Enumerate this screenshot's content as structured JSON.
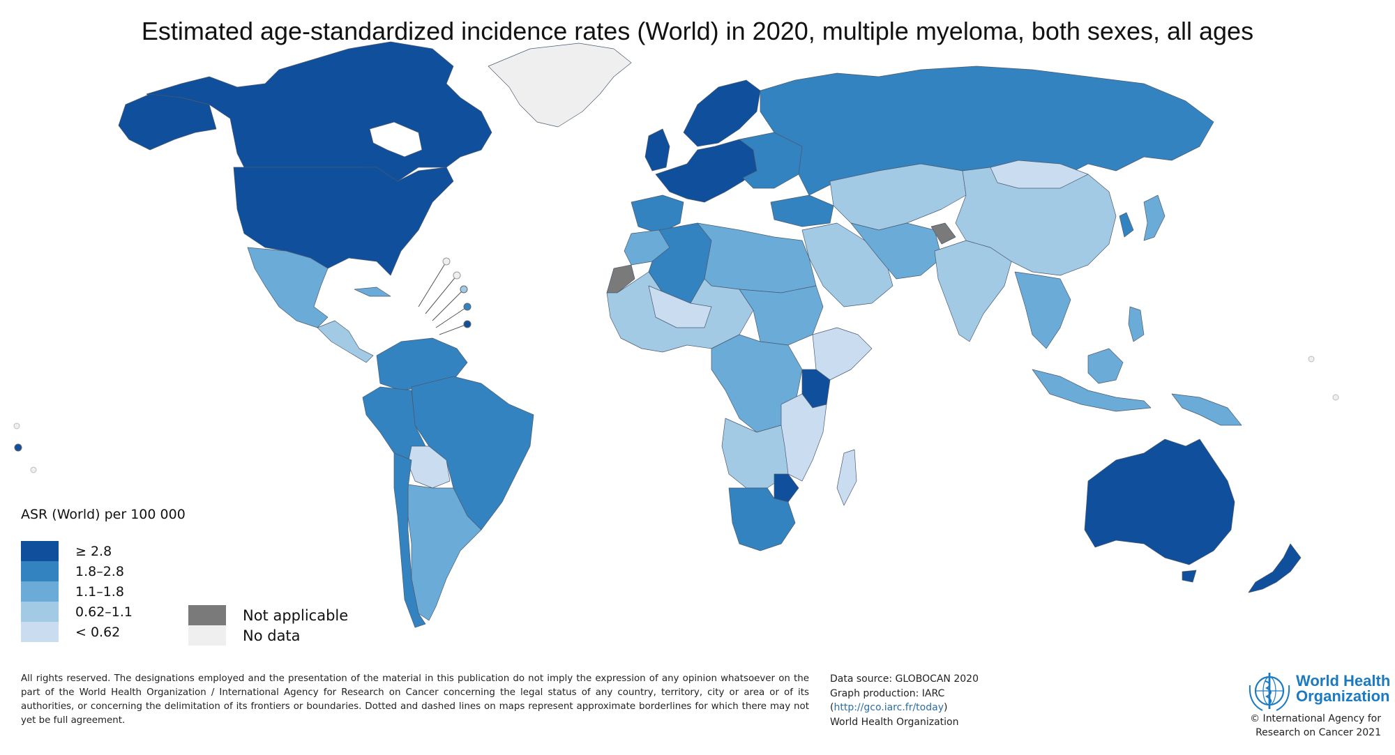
{
  "title": "Estimated age-standardized incidence rates (World) in 2020, multiple myeloma, both sexes, all ages",
  "legend": {
    "title": "ASR (World) per 100 000",
    "classes": [
      {
        "label": "≥ 2.8",
        "color": "#0f4f9b"
      },
      {
        "label": "1.8–2.8",
        "color": "#3383c1"
      },
      {
        "label": "1.1–1.8",
        "color": "#6aabd8"
      },
      {
        "label": "0.62–1.1",
        "color": "#a2cae5"
      },
      {
        "label": "< 0.62",
        "color": "#c9dcf0"
      }
    ],
    "not_applicable": {
      "label": "Not applicable",
      "color": "#7a7a7a"
    },
    "no_data": {
      "label": "No data",
      "color": "#efefef"
    }
  },
  "disclaimer": "All rights reserved. The designations employed and the presentation of the material in this publication do not imply the expression of any opinion whatsoever on the part of the World Health Organization / International Agency for Research on Cancer concerning the legal status of any country, territory, city or area or of its authorities, or concerning the delimitation of its frontiers or boundaries. Dotted and dashed lines on maps represent approximate borderlines for which there may not yet be full agreement.",
  "source": {
    "data_source": "Data source: GLOBOCAN 2020",
    "graph_production": "Graph production: IARC",
    "url_open": "(",
    "url": "http://gco.iarc.fr/today",
    "url_close": ")",
    "org": "World Health Organization"
  },
  "logo": {
    "line1": "World Health",
    "line2": "Organization"
  },
  "copyright": {
    "line1": "© International Agency for",
    "line2": "Research on Cancer 2021"
  },
  "map_regions": [
    {
      "name": "Greenland",
      "class": "no_data"
    },
    {
      "name": "Canada",
      "class": "≥ 2.8"
    },
    {
      "name": "United States",
      "class": "≥ 2.8"
    },
    {
      "name": "Mexico",
      "class": "1.1–1.8"
    },
    {
      "name": "Brazil",
      "class": "1.8–2.8"
    },
    {
      "name": "Argentina",
      "class": "1.1–1.8"
    },
    {
      "name": "Bolivia",
      "class": "< 0.62"
    },
    {
      "name": "Western Europe",
      "class": "≥ 2.8"
    },
    {
      "name": "Russia",
      "class": "1.8–2.8"
    },
    {
      "name": "China",
      "class": "0.62–1.1"
    },
    {
      "name": "India",
      "class": "0.62–1.1"
    },
    {
      "name": "Australia",
      "class": "≥ 2.8"
    },
    {
      "name": "New Zealand",
      "class": "≥ 2.8"
    },
    {
      "name": "Kenya",
      "class": "≥ 2.8"
    },
    {
      "name": "Zimbabwe",
      "class": "≥ 2.8"
    },
    {
      "name": "South Africa",
      "class": "1.8–2.8"
    },
    {
      "name": "Western Sahara",
      "class": "Not applicable"
    },
    {
      "name": "Kashmir",
      "class": "Not applicable"
    }
  ]
}
